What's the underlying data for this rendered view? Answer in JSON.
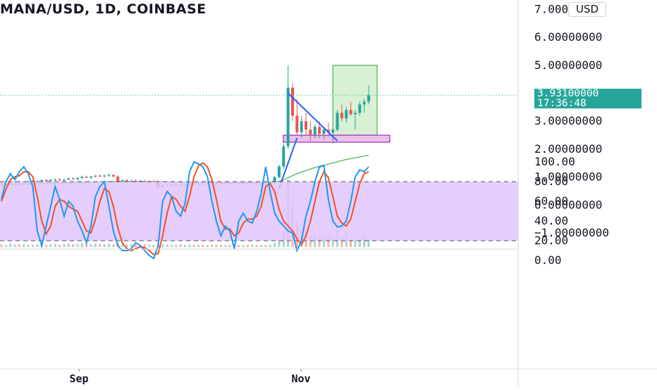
{
  "header": {
    "title": "MANA/USD, 1D, COINBASE",
    "currency_button": "USD"
  },
  "colors": {
    "up": "#26a69a",
    "down": "#ef5350",
    "ma": "#4caf50",
    "stoch_k": "#2196f3",
    "stoch_d": "#f4511e",
    "stoch_band": "#e1c4fb",
    "target_box": "#d8f0d4",
    "support_box": "#e9c3ec",
    "trendline": "#2962ff"
  },
  "price_axis": {
    "ticks": [
      "7.00000000",
      "6.00000000",
      "5.00000000",
      "3.00000000",
      "2.00000000",
      "1.00000000",
      "0.00000000",
      "−1.00000000"
    ],
    "current_price": "3.93100000",
    "countdown": "17:36:48"
  },
  "time_axis": {
    "ticks": [
      "Sep",
      "Nov"
    ]
  },
  "stoch_axis": {
    "ticks": [
      "100.00",
      "80.00",
      "60.00",
      "40.00",
      "20.00",
      "0.00"
    ]
  },
  "chart_data": {
    "type": "candlestick",
    "title": "MANA/USD, 1D, COINBASE",
    "price_ylim": [
      -1.3,
      7.0
    ],
    "current_price": 3.931,
    "ohlc": [
      [
        0.78,
        0.82,
        0.72,
        0.76
      ],
      [
        0.76,
        0.8,
        0.72,
        0.78
      ],
      [
        0.78,
        0.83,
        0.74,
        0.8
      ],
      [
        0.8,
        0.86,
        0.76,
        0.83
      ],
      [
        0.83,
        0.87,
        0.78,
        0.8
      ],
      [
        0.8,
        0.84,
        0.76,
        0.82
      ],
      [
        0.82,
        0.88,
        0.79,
        0.85
      ],
      [
        0.85,
        0.89,
        0.8,
        0.82
      ],
      [
        0.82,
        0.88,
        0.78,
        0.86
      ],
      [
        0.86,
        0.92,
        0.82,
        0.89
      ],
      [
        0.89,
        0.93,
        0.84,
        0.86
      ],
      [
        0.86,
        0.92,
        0.82,
        0.9
      ],
      [
        0.9,
        0.95,
        0.86,
        0.92
      ],
      [
        0.92,
        0.96,
        0.86,
        0.88
      ],
      [
        0.88,
        0.94,
        0.84,
        0.91
      ],
      [
        0.91,
        0.98,
        0.88,
        0.95
      ],
      [
        0.95,
        1.0,
        0.9,
        0.93
      ],
      [
        0.93,
        0.99,
        0.89,
        0.97
      ],
      [
        0.97,
        1.05,
        0.93,
        1.01
      ],
      [
        1.01,
        1.06,
        0.96,
        0.98
      ],
      [
        0.98,
        1.04,
        0.94,
        1.02
      ],
      [
        1.02,
        1.08,
        0.98,
        1.05
      ],
      [
        1.05,
        1.1,
        1.0,
        1.03
      ],
      [
        1.03,
        1.08,
        0.98,
        1.06
      ],
      [
        1.06,
        1.12,
        1.01,
        1.08
      ],
      [
        1.08,
        1.1,
        1.0,
        1.02
      ],
      [
        1.02,
        1.06,
        0.8,
        0.85
      ],
      [
        0.85,
        0.92,
        0.8,
        0.88
      ],
      [
        0.88,
        0.93,
        0.82,
        0.84
      ],
      [
        0.84,
        0.9,
        0.8,
        0.87
      ],
      [
        0.87,
        0.92,
        0.82,
        0.85
      ],
      [
        0.85,
        0.9,
        0.8,
        0.86
      ],
      [
        0.86,
        0.9,
        0.8,
        0.83
      ],
      [
        0.83,
        0.88,
        0.78,
        0.85
      ],
      [
        0.85,
        0.9,
        0.8,
        0.84
      ],
      [
        0.84,
        0.88,
        0.6,
        0.66
      ],
      [
        0.66,
        0.74,
        0.6,
        0.7
      ],
      [
        0.7,
        0.76,
        0.64,
        0.68
      ],
      [
        0.68,
        0.74,
        0.62,
        0.71
      ],
      [
        0.71,
        0.78,
        0.66,
        0.74
      ],
      [
        0.74,
        0.8,
        0.68,
        0.7
      ],
      [
        0.7,
        0.76,
        0.64,
        0.72
      ],
      [
        0.72,
        0.78,
        0.68,
        0.76
      ],
      [
        0.76,
        0.82,
        0.7,
        0.74
      ],
      [
        0.74,
        0.8,
        0.7,
        0.77
      ],
      [
        0.77,
        0.82,
        0.72,
        0.75
      ],
      [
        0.75,
        0.8,
        0.7,
        0.78
      ],
      [
        0.78,
        0.82,
        0.72,
        0.76
      ],
      [
        0.76,
        0.82,
        0.72,
        0.79
      ],
      [
        0.79,
        0.84,
        0.74,
        0.77
      ],
      [
        0.77,
        0.82,
        0.72,
        0.8
      ],
      [
        0.8,
        0.84,
        0.74,
        0.78
      ],
      [
        0.78,
        0.83,
        0.73,
        0.8
      ],
      [
        0.8,
        0.84,
        0.75,
        0.77
      ],
      [
        0.77,
        0.82,
        0.73,
        0.79
      ],
      [
        0.79,
        0.84,
        0.74,
        0.76
      ],
      [
        0.76,
        0.82,
        0.72,
        0.78
      ],
      [
        0.78,
        0.82,
        0.73,
        0.75
      ],
      [
        0.75,
        0.8,
        0.7,
        0.77
      ],
      [
        0.77,
        0.81,
        0.72,
        0.74
      ],
      [
        0.74,
        0.82,
        0.7,
        0.8
      ],
      [
        0.8,
        1.05,
        0.76,
        1.0
      ],
      [
        1.0,
        1.45,
        0.95,
        1.38
      ],
      [
        1.38,
        2.2,
        1.3,
        2.1
      ],
      [
        2.1,
        5.0,
        2.0,
        4.2
      ],
      [
        4.2,
        4.35,
        3.0,
        3.2
      ],
      [
        3.2,
        3.8,
        2.5,
        2.6
      ],
      [
        2.6,
        3.2,
        2.4,
        3.0
      ],
      [
        3.0,
        3.3,
        2.5,
        2.7
      ],
      [
        2.7,
        3.0,
        2.3,
        2.5
      ],
      [
        2.5,
        2.9,
        2.4,
        2.8
      ],
      [
        2.8,
        3.0,
        2.4,
        2.55
      ],
      [
        2.55,
        2.8,
        2.35,
        2.7
      ],
      [
        2.7,
        2.95,
        2.45,
        2.6
      ],
      [
        2.6,
        2.75,
        2.2,
        2.7
      ],
      [
        2.7,
        3.4,
        2.65,
        3.3
      ],
      [
        3.3,
        3.6,
        3.0,
        3.1
      ],
      [
        3.1,
        3.5,
        2.95,
        3.4
      ],
      [
        3.4,
        3.7,
        3.2,
        3.25
      ],
      [
        3.25,
        3.4,
        2.7,
        3.3
      ],
      [
        3.3,
        3.7,
        3.2,
        3.6
      ],
      [
        3.6,
        3.8,
        3.3,
        3.7
      ],
      [
        3.7,
        4.3,
        3.6,
        3.93
      ]
    ],
    "moving_average": [
      0.72,
      0.725,
      0.73,
      0.735,
      0.74,
      0.745,
      0.75,
      0.755,
      0.76,
      0.765,
      0.77,
      0.775,
      0.78,
      0.785,
      0.79,
      0.795,
      0.8,
      0.805,
      0.81,
      0.815,
      0.82,
      0.825,
      0.83,
      0.835,
      0.84,
      0.845,
      0.845,
      0.845,
      0.845,
      0.845,
      0.845,
      0.845,
      0.845,
      0.84,
      0.84,
      0.835,
      0.83,
      0.83,
      0.825,
      0.82,
      0.82,
      0.815,
      0.815,
      0.81,
      0.81,
      0.81,
      0.81,
      0.81,
      0.81,
      0.81,
      0.81,
      0.81,
      0.81,
      0.81,
      0.81,
      0.81,
      0.81,
      0.81,
      0.81,
      0.81,
      0.81,
      0.82,
      0.85,
      0.9,
      0.98,
      1.05,
      1.12,
      1.18,
      1.24,
      1.29,
      1.34,
      1.39,
      1.43,
      1.47,
      1.51,
      1.55,
      1.59,
      1.63,
      1.66,
      1.69,
      1.72,
      1.75,
      1.78
    ],
    "volume": [
      0.1,
      0.08,
      0.12,
      0.09,
      0.1,
      0.11,
      0.09,
      0.08,
      0.1,
      0.12,
      0.09,
      0.1,
      0.11,
      0.09,
      0.1,
      0.13,
      0.1,
      0.11,
      0.14,
      0.12,
      0.1,
      0.13,
      0.11,
      0.1,
      0.12,
      0.1,
      0.16,
      0.11,
      0.09,
      0.1,
      0.08,
      0.09,
      0.1,
      0.09,
      0.08,
      0.14,
      0.1,
      0.09,
      0.08,
      0.09,
      0.1,
      0.08,
      0.09,
      0.08,
      0.09,
      0.08,
      0.07,
      0.08,
      0.09,
      0.08,
      0.07,
      0.08,
      0.09,
      0.08,
      0.07,
      0.09,
      0.08,
      0.07,
      0.08,
      0.07,
      0.09,
      0.15,
      0.3,
      0.55,
      2.4,
      1.6,
      0.9,
      0.6,
      0.55,
      0.4,
      0.5,
      0.38,
      0.35,
      0.4,
      0.3,
      0.6,
      0.35,
      0.55,
      0.3,
      0.28,
      0.3,
      0.4,
      0.32
    ],
    "target_box": {
      "start_index": 74,
      "end_index": 82,
      "top": 5.0,
      "bottom": 2.5
    },
    "support_box": {
      "start_index": 62,
      "end_index": 82,
      "top": 2.5,
      "bottom": 2.25
    },
    "trendlines": [
      {
        "start_index": 62,
        "start_value": 0.6,
        "end_index": 66,
        "end_value": 2.4
      },
      {
        "start_index": 64,
        "start_value": 4.0,
        "end_index": 75,
        "end_value": 2.3
      }
    ],
    "stochastic": {
      "ylim": [
        0,
        100
      ],
      "band": [
        20,
        80
      ],
      "k": [
        62,
        80,
        88,
        82,
        90,
        95,
        88,
        75,
        30,
        15,
        35,
        55,
        75,
        62,
        45,
        60,
        55,
        40,
        30,
        18,
        35,
        65,
        75,
        80,
        55,
        30,
        15,
        10,
        10,
        12,
        18,
        15,
        10,
        5,
        2,
        15,
        60,
        70,
        65,
        50,
        45,
        58,
        90,
        100,
        98,
        95,
        85,
        60,
        40,
        25,
        35,
        30,
        12,
        40,
        48,
        40,
        38,
        50,
        68,
        95,
        70,
        48,
        40,
        35,
        30,
        28,
        10,
        20,
        45,
        60,
        80,
        95,
        96,
        62,
        40,
        34,
        35,
        40,
        60,
        85,
        92,
        90,
        95
      ],
      "d": [
        60,
        72,
        82,
        85,
        86,
        90,
        90,
        85,
        65,
        40,
        27,
        35,
        55,
        62,
        60,
        55,
        52,
        50,
        40,
        30,
        28,
        42,
        60,
        73,
        70,
        55,
        33,
        18,
        12,
        10,
        12,
        14,
        13,
        10,
        6,
        7,
        25,
        48,
        65,
        62,
        55,
        50,
        65,
        85,
        96,
        99,
        95,
        82,
        62,
        40,
        32,
        32,
        25,
        28,
        38,
        42,
        42,
        45,
        55,
        75,
        78,
        70,
        52,
        40,
        35,
        30,
        22,
        16,
        25,
        40,
        60,
        80,
        90,
        84,
        65,
        45,
        38,
        35,
        42,
        60,
        78,
        88,
        90
      ]
    }
  }
}
